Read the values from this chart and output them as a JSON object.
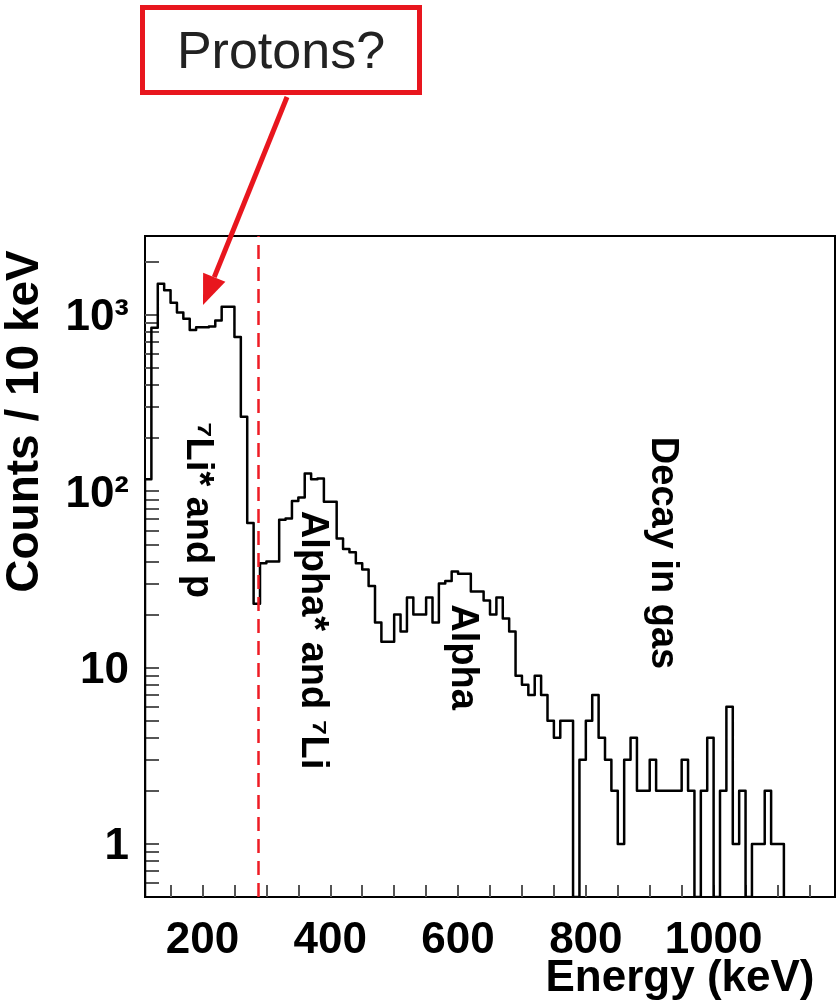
{
  "chart_data": {
    "type": "histogram",
    "xlabel": "Energy (keV)",
    "ylabel": "Counts / 10 keV",
    "color": "#000000",
    "log": "y",
    "bins": [
      110,
      120,
      130,
      140,
      150,
      160,
      170,
      180,
      190,
      200,
      210,
      220,
      230,
      240,
      250,
      260,
      270,
      280,
      290,
      300,
      310,
      320,
      330,
      340,
      350,
      360,
      370,
      380,
      390,
      400,
      410,
      420,
      430,
      440,
      450,
      460,
      470,
      480,
      490,
      500,
      510,
      520,
      530,
      540,
      550,
      560,
      570,
      580,
      590,
      600,
      610,
      620,
      630,
      640,
      650,
      660,
      670,
      680,
      690,
      700,
      710,
      720,
      730,
      740,
      750,
      760,
      770,
      780,
      790,
      800,
      810,
      820,
      830,
      840,
      850,
      860,
      870,
      880,
      890,
      900,
      910,
      920,
      930,
      940,
      950,
      960,
      970,
      980,
      990,
      1000,
      1010,
      1020,
      1030,
      1040,
      1050,
      1060,
      1070,
      1080,
      1090,
      1100,
      1110
    ],
    "values": [
      117,
      845,
      1500,
      1380,
      1170,
      1030,
      950,
      820,
      850,
      850,
      860,
      930,
      1110,
      1110,
      750,
      264,
      66,
      23,
      39,
      40,
      40,
      69,
      70,
      88,
      92,
      126,
      117,
      118,
      87,
      87,
      54,
      47,
      45,
      39,
      36,
      29,
      18,
      14,
      14,
      20,
      16,
      25,
      20,
      20,
      25,
      18,
      30,
      31,
      35,
      34,
      34,
      27,
      27,
      24,
      20,
      25,
      19,
      16,
      9,
      8,
      7,
      9,
      7,
      5,
      4,
      5,
      5,
      null,
      3,
      5,
      7,
      4,
      3,
      2,
      1,
      3,
      4,
      2,
      2,
      3,
      2,
      2,
      2,
      2,
      3,
      2,
      null,
      2,
      4,
      null,
      2,
      6,
      1,
      2,
      null,
      1,
      1,
      2,
      1,
      1
    ],
    "xlim": [
      110,
      1190
    ],
    "ylim": [
      0.5,
      2800
    ],
    "xticks": [
      {
        "value": 150,
        "label": null
      },
      200,
      {
        "value": 250,
        "label": null
      },
      {
        "value": 300,
        "label": null
      },
      {
        "value": 350,
        "label": null
      },
      400,
      {
        "value": 450,
        "label": null
      },
      {
        "value": 500,
        "label": null
      },
      {
        "value": 550,
        "label": null
      },
      600,
      {
        "value": 650,
        "label": null
      },
      {
        "value": 700,
        "label": null
      },
      {
        "value": 750,
        "label": null
      },
      800,
      {
        "value": 850,
        "label": null
      },
      {
        "value": 900,
        "label": null
      },
      {
        "value": 950,
        "label": null
      },
      1000,
      {
        "value": 1050,
        "label": null
      },
      {
        "value": 1100,
        "label": null
      },
      {
        "value": 1150,
        "label": null
      }
    ],
    "yticks": [
      {
        "value": 0.6,
        "label": null
      },
      {
        "value": 0.7,
        "label": null
      },
      {
        "value": 0.8,
        "label": null
      },
      {
        "value": 0.9,
        "label": null
      },
      1,
      {
        "value": 2,
        "label": null
      },
      {
        "value": 3,
        "label": null
      },
      {
        "value": 4,
        "label": null
      },
      {
        "value": 5,
        "label": null
      },
      {
        "value": 6,
        "label": null
      },
      {
        "value": 7,
        "label": null
      },
      {
        "value": 8,
        "label": null
      },
      {
        "value": 9,
        "label": null
      },
      10,
      {
        "value": 20,
        "label": null
      },
      {
        "value": 30,
        "label": null
      },
      {
        "value": 40,
        "label": null
      },
      {
        "value": 50,
        "label": null
      },
      {
        "value": 60,
        "label": null
      },
      {
        "value": 70,
        "label": null
      },
      {
        "value": 80,
        "label": null
      },
      {
        "value": 90,
        "label": null
      },
      {
        "value": 100,
        "label": "10²"
      },
      {
        "value": 200,
        "label": null
      },
      {
        "value": 300,
        "label": null
      },
      {
        "value": 400,
        "label": null
      },
      {
        "value": 500,
        "label": null
      },
      {
        "value": 600,
        "label": null
      },
      {
        "value": 700,
        "label": null
      },
      {
        "value": 800,
        "label": null
      },
      {
        "value": 900,
        "label": null
      },
      {
        "value": 1000,
        "label": "10³"
      },
      {
        "value": 2000,
        "label": null
      }
    ],
    "ref_lines": [
      {
        "axis": "x",
        "value": 288,
        "color": "#ee1c25",
        "line_style": "dashed"
      }
    ],
    "annotations": [
      "Protons?",
      "⁷Li* and p",
      "Alpha* and ⁷Li",
      "Alpha",
      "Decay in gas"
    ]
  }
}
